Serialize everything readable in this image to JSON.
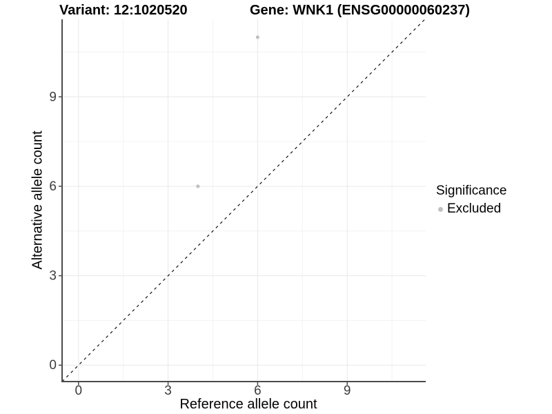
{
  "header": {
    "variant_title": "Variant: 12:1020520",
    "gene_title": "Gene: WNK1 (ENSG00000060237)"
  },
  "axes": {
    "x_label": "Reference allele count",
    "y_label": "Alternative allele count"
  },
  "legend": {
    "title": "Significance",
    "items": [
      {
        "label": "Excluded",
        "color": "#c0c0c0"
      }
    ]
  },
  "colors": {
    "background": "#ffffff",
    "point": "#c0c0c0",
    "axis_line": "#4a4a4a",
    "tick_text": "#3d3d3d",
    "grid_major": "#e8e8e8",
    "grid_minor": "#f3f3f3",
    "identity_line": "#111111"
  },
  "chart_data": {
    "type": "scatter",
    "title": "Variant: 12:1020520 / Gene: WNK1 (ENSG00000060237)",
    "xlabel": "Reference allele count",
    "ylabel": "Alternative allele count",
    "xlim": [
      -0.55,
      11.63
    ],
    "ylim": [
      -0.55,
      11.6
    ],
    "x_ticks": [
      0,
      3,
      6,
      9
    ],
    "y_ticks": [
      0,
      3,
      6,
      9
    ],
    "x_minor_ticks": [
      1.5,
      4.5,
      7.5,
      10.5
    ],
    "y_minor_ticks": [
      1.5,
      4.5,
      7.5,
      10.5
    ],
    "grid": true,
    "legend_position": "right",
    "series": [
      {
        "name": "Excluded",
        "color": "#c0c0c0",
        "points": [
          {
            "x": 6,
            "y": 11
          },
          {
            "x": 4,
            "y": 6
          }
        ]
      }
    ],
    "reference_line": {
      "type": "identity",
      "style": "dashed",
      "from": [
        -0.55,
        -0.55
      ],
      "to": [
        11.6,
        11.6
      ]
    }
  }
}
